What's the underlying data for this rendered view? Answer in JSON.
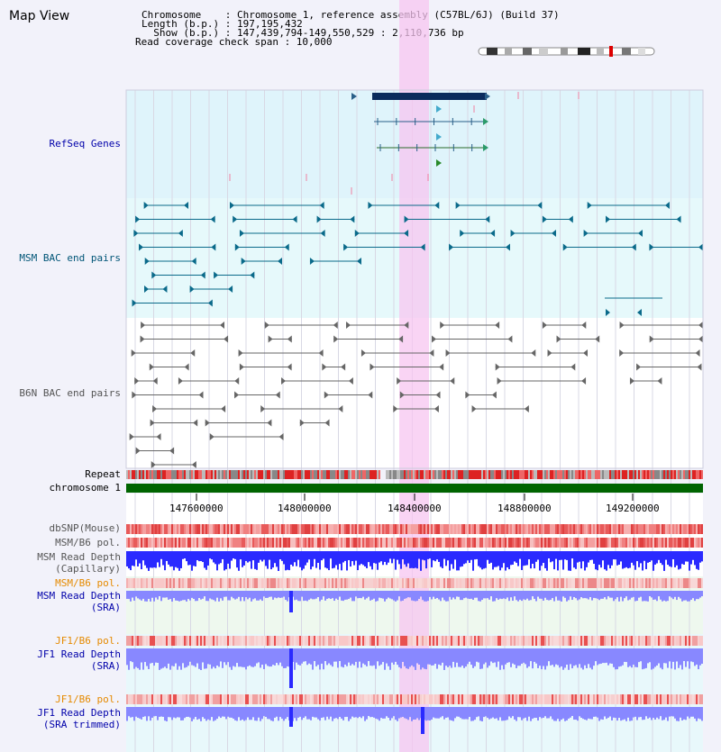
{
  "title": "Map View",
  "header": {
    "chromosome_line": "Chromosome    : Chromosome 1, reference assembly (C57BL/6J) (Build 37)",
    "length_line": "Length (b.p.) : 197,195,432",
    "show_line": "  Show (b.p.) : 147,439,794-149,550,529 : 2,110,736 bp",
    "coverage_line": "Read coverage check span : 10,000"
  },
  "tracks": {
    "refseq": "RefSeq Genes",
    "msm_bac": "MSM BAC end pairs",
    "b6n_bac": "B6N BAC end pairs",
    "repeat": "Repeat",
    "chromosome": "chromosome 1",
    "dbsnp": "dbSNP(Mouse)",
    "msm_b6_pol": "MSM/B6 pol.",
    "msm_depth_cap_1": "MSM Read Depth",
    "msm_depth_cap_2": "(Capillary)",
    "msm_b6_pol_sra": "MSM/B6 pol.",
    "msm_depth_sra_1": "MSM Read Depth",
    "msm_depth_sra_2": "(SRA)",
    "jf1_b6_pol": "JF1/B6 pol.",
    "jf1_depth_1": "JF1 Read Depth",
    "jf1_depth_2": "(SRA)",
    "jf1_b6_pol_trim": "JF1/B6 pol.",
    "jf1_trim_1": "JF1 Read Depth",
    "jf1_trim_2": "(SRA trimmed)"
  },
  "axis": {
    "ticks": [
      "147600000",
      "148000000",
      "148400000",
      "148800000",
      "149200000"
    ]
  },
  "colors": {
    "highlight": "#f7c6f0",
    "refseq_bg": "#dff4fb",
    "msm_bg": "#e6f9fb",
    "chromosome_bar": "#006400",
    "depth_blue": "#2a2aff",
    "depth_light": "#8888ff"
  }
}
